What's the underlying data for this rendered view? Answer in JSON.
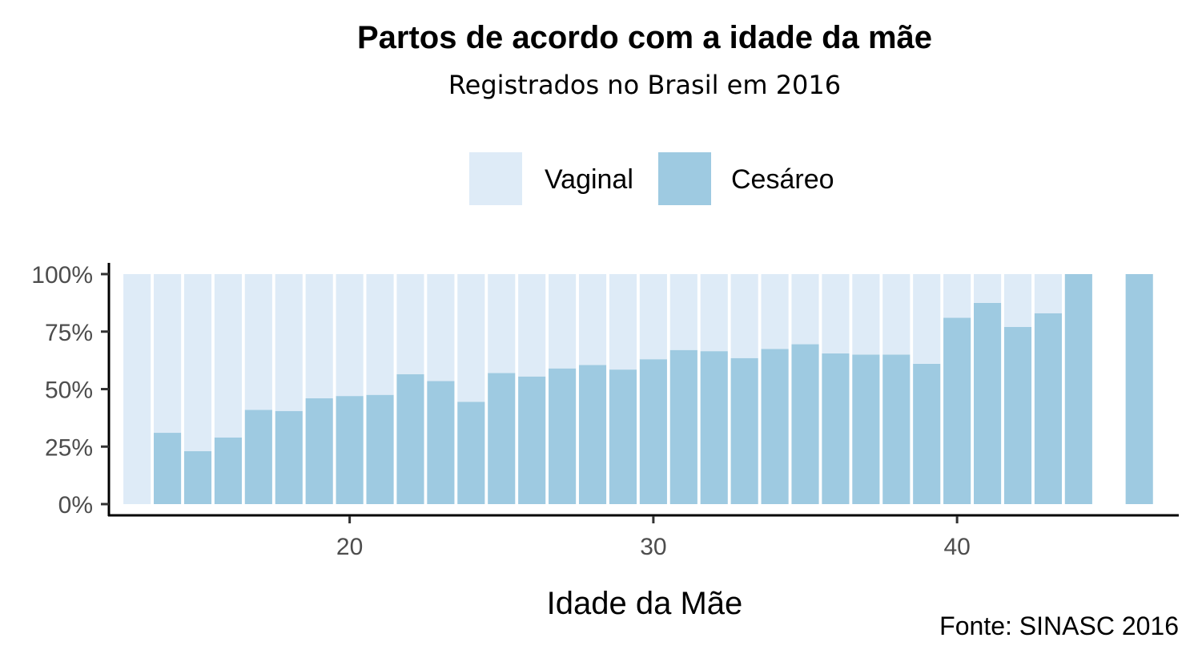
{
  "chart_data": {
    "type": "bar",
    "stacked": "fill",
    "title": "Partos de acordo com a idade da mãe",
    "subtitle": "Registrados no Brasil em 2016",
    "xlabel": "Idade da Mãe",
    "ylabel": "",
    "caption": "Fonte: SINASC 2016",
    "legend_position": "top",
    "x": [
      13,
      14,
      15,
      16,
      17,
      18,
      19,
      20,
      21,
      22,
      23,
      24,
      25,
      26,
      27,
      28,
      29,
      30,
      31,
      32,
      33,
      34,
      35,
      36,
      37,
      38,
      39,
      40,
      41,
      42,
      43,
      44,
      46
    ],
    "series": [
      {
        "name": "Vaginal",
        "color": "#deebf7",
        "values": [
          1.0,
          0.69,
          0.77,
          0.71,
          0.59,
          0.595,
          0.54,
          0.53,
          0.525,
          0.435,
          0.465,
          0.555,
          0.43,
          0.445,
          0.41,
          0.395,
          0.415,
          0.37,
          0.33,
          0.335,
          0.365,
          0.325,
          0.305,
          0.345,
          0.35,
          0.35,
          0.39,
          0.19,
          0.125,
          0.23,
          0.17,
          0.0,
          0.0
        ]
      },
      {
        "name": "Cesáreo",
        "color": "#9ecae1",
        "values": [
          0.0,
          0.31,
          0.23,
          0.29,
          0.41,
          0.405,
          0.46,
          0.47,
          0.475,
          0.565,
          0.535,
          0.445,
          0.57,
          0.555,
          0.59,
          0.605,
          0.585,
          0.63,
          0.67,
          0.665,
          0.635,
          0.675,
          0.695,
          0.655,
          0.65,
          0.65,
          0.61,
          0.81,
          0.875,
          0.77,
          0.83,
          1.0,
          1.0
        ]
      }
    ],
    "xlim": [
      12.1,
      47.3
    ],
    "ylim": [
      0,
      1
    ],
    "x_ticks": [
      20,
      30,
      40
    ],
    "x_tick_labels": [
      "20",
      "30",
      "40"
    ],
    "y_ticks": [
      0,
      0.25,
      0.5,
      0.75,
      1.0
    ],
    "y_tick_labels": [
      "0%",
      "25%",
      "50%",
      "75%",
      "100%"
    ],
    "grid": false
  }
}
